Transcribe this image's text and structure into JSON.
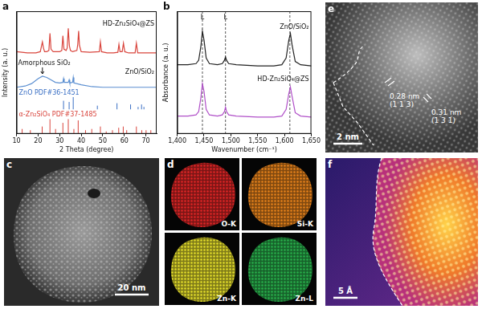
{
  "chart_data": [
    {
      "panel": "a",
      "type": "line",
      "x_label": "2 Theta (degree)",
      "y_label": "Intensity (a. u.)",
      "xlim": [
        10,
        75
      ],
      "xticks": [
        10,
        20,
        30,
        40,
        50,
        60,
        70
      ],
      "ylim": [
        0,
        100
      ],
      "tick_labels": "x",
      "grid": false,
      "series": [
        {
          "name": "HD-Zn₂SiO₄@ZS",
          "color": "#d9453d",
          "x": [
            10,
            15,
            19,
            20,
            21,
            21.5,
            22,
            22.5,
            23,
            24,
            25,
            25.5,
            26,
            27,
            28,
            30,
            31,
            31.5,
            32,
            33,
            33.5,
            34,
            34.5,
            35,
            36,
            38,
            38.4,
            38.8,
            39.2,
            40,
            44,
            48.4,
            48.9,
            49.4,
            52,
            55,
            57,
            57.5,
            58,
            59,
            59.6,
            60.2,
            62,
            65,
            65.6,
            66.2,
            68,
            70,
            72,
            75
          ],
          "values": [
            67,
            66,
            66,
            66.5,
            67,
            71,
            75,
            70,
            67,
            67,
            68,
            82,
            69,
            67,
            67,
            67,
            68,
            80,
            69,
            68,
            70,
            86,
            72,
            68,
            67,
            68,
            73,
            84,
            72,
            67,
            66.5,
            67,
            75,
            67,
            66,
            66,
            66.5,
            73,
            67,
            67,
            74,
            67,
            66,
            66,
            74,
            66,
            66,
            66,
            66,
            66
          ]
        },
        {
          "name": "ZnO/SiO₂",
          "color": "#5b8fd1",
          "x": [
            10,
            14,
            17,
            20,
            22,
            24,
            26,
            28,
            30,
            31.5,
            31.8,
            32.1,
            34,
            34.4,
            34.7,
            36,
            36.3,
            36.6,
            40,
            45,
            50,
            55,
            60,
            65,
            70,
            75
          ],
          "values": [
            38,
            39,
            41,
            45,
            47,
            46,
            44,
            42,
            41.5,
            42,
            45,
            42,
            42,
            44,
            41.5,
            42,
            46,
            41.5,
            40,
            38.5,
            38,
            38,
            38,
            38,
            38,
            38
          ]
        },
        {
          "name": "ZnO PDF#36-1451",
          "type": "stick",
          "color": "#3a6fc4",
          "base": 20,
          "x": [
            31.8,
            34.4,
            36.3,
            47.5,
            56.6,
            62.9,
            66.4,
            68.0,
            69.1
          ],
          "values": [
            27,
            26,
            30,
            23,
            25,
            24,
            22,
            24,
            22
          ]
        },
        {
          "name": "α-Zn₂SiO₄ PDF#37-1485",
          "type": "stick",
          "color": "#d9453d",
          "base": 0,
          "x": [
            12.6,
            16.4,
            21.9,
            25.5,
            28.1,
            31.5,
            34.0,
            36.6,
            38.6,
            42.0,
            44.9,
            48.9,
            51.6,
            54.5,
            57.4,
            59.5,
            61.1,
            65.6,
            68.1,
            70.1,
            72.3
          ],
          "values": [
            4,
            3,
            6,
            12,
            4,
            9,
            12,
            4,
            11,
            3,
            4,
            6,
            2,
            3,
            5,
            6,
            3,
            6,
            3,
            3,
            3
          ]
        }
      ],
      "annotations": [
        {
          "text": "Amorphous SiO₂",
          "x": 22,
          "target": "ZnO/SiO₂"
        }
      ]
    },
    {
      "panel": "b",
      "type": "line",
      "x_label": "Wavenumber (cm⁻¹)",
      "y_label": "Absorbance (a. u.)",
      "xlim": [
        1400,
        1650
      ],
      "xticks": [
        1400,
        1450,
        1500,
        1550,
        1600,
        1650
      ],
      "ylim": [
        0,
        110
      ],
      "tick_labels": "x",
      "grid": false,
      "series": [
        {
          "name": "ZnO/SiO₂",
          "color": "#222222",
          "x": [
            1400,
            1420,
            1435,
            1440,
            1444,
            1447,
            1450,
            1454,
            1460,
            1475,
            1484,
            1488,
            1490,
            1492,
            1496,
            1510,
            1550,
            1580,
            1595,
            1603,
            1608,
            1611,
            1614,
            1620,
            1630,
            1650
          ],
          "values": [
            62,
            62,
            63,
            66,
            78,
            92,
            84,
            68,
            63,
            62,
            63,
            66,
            69,
            66,
            63,
            62,
            61,
            61,
            62,
            68,
            84,
            90,
            80,
            65,
            62,
            61
          ]
        },
        {
          "name": "HD-Zn₂SiO₄@ZS",
          "color": "#b04fc8",
          "x": [
            1400,
            1420,
            1435,
            1440,
            1444,
            1447,
            1450,
            1454,
            1460,
            1475,
            1484,
            1488,
            1490,
            1492,
            1496,
            1510,
            1550,
            1580,
            1595,
            1603,
            1608,
            1611,
            1614,
            1620,
            1630,
            1650
          ],
          "values": [
            16,
            16,
            17,
            20,
            32,
            45,
            38,
            22,
            17,
            16,
            17,
            20,
            24,
            20,
            17,
            16,
            15,
            15,
            16,
            22,
            36,
            42,
            34,
            19,
            16,
            15
          ]
        }
      ],
      "vlines": {
        "x": [
          1447,
          1490,
          1610
        ],
        "line_style": "dashed"
      },
      "annotations": [
        {
          "text": "L",
          "x": 1447
        },
        {
          "text": "L",
          "x": 1490
        }
      ]
    }
  ],
  "images": [
    {
      "panel": "c",
      "scale_bar": "20 nm"
    },
    {
      "panel": "d",
      "maps": [
        {
          "label": "O-K",
          "color": "#e02424"
        },
        {
          "label": "Si-K",
          "color": "#e8821a"
        },
        {
          "label": "Zn-K",
          "color": "#e6e02a"
        },
        {
          "label": "Zn-L",
          "color": "#27b04a"
        }
      ]
    },
    {
      "panel": "e",
      "scale_bar": "2 nm",
      "lattice": [
        {
          "spacing": "0.28 nm",
          "plane": "(1 1 3)"
        },
        {
          "spacing": "0.31 nm",
          "plane": "(1 3 1)"
        }
      ]
    },
    {
      "panel": "f",
      "scale_bar": "5 Å"
    }
  ]
}
